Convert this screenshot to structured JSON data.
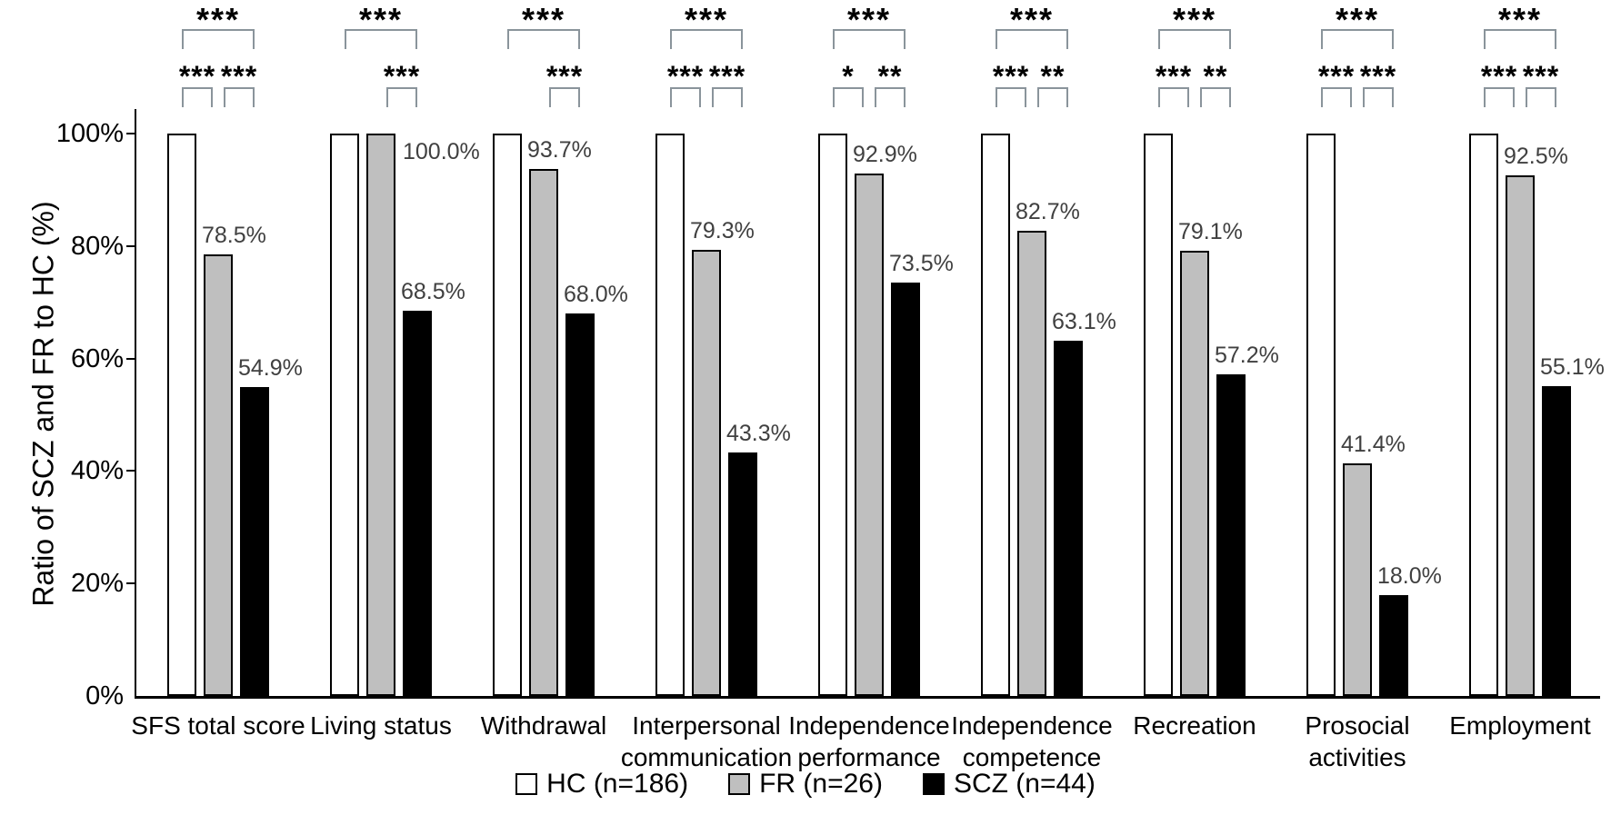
{
  "figure": {
    "ylabel": "Ratio of SCZ and FR to HC (%)"
  },
  "colors": {
    "bar_border": "#000000",
    "bracket": "#8a949b",
    "value_label": "#404040",
    "axis": "#000000"
  },
  "chart_data": {
    "type": "bar",
    "title": "",
    "xlabel": "",
    "ylabel": "Ratio of SCZ and FR to HC (%)",
    "ylim": [
      0,
      100
    ],
    "y_ticks": [
      "0%",
      "20%",
      "40%",
      "60%",
      "80%",
      "100%"
    ],
    "grid": false,
    "legend_position": "bottom-center",
    "categories": [
      "SFS total score",
      "Living status",
      "Withdrawal",
      "Interpersonal communication",
      "Independence performance",
      "Independence competence",
      "Recreation",
      "Prosocial activities",
      "Employment"
    ],
    "category_lines": [
      [
        "SFS total score"
      ],
      [
        "Living status"
      ],
      [
        "Withdrawal"
      ],
      [
        "Interpersonal",
        "communication"
      ],
      [
        "Independence",
        "performance"
      ],
      [
        "Independence",
        "competence"
      ],
      [
        "Recreation"
      ],
      [
        "Prosocial",
        "activities"
      ],
      [
        "Employment"
      ]
    ],
    "series": [
      {
        "name": "HC (n=186)",
        "color": "#ffffff",
        "values": [
          100,
          100,
          100,
          100,
          100,
          100,
          100,
          100,
          100
        ],
        "data_labels": [
          null,
          null,
          null,
          null,
          null,
          null,
          null,
          null,
          null
        ]
      },
      {
        "name": "FR (n=26)",
        "color": "#bfbfbf",
        "values": [
          78.5,
          100.0,
          93.7,
          79.3,
          92.9,
          82.7,
          79.1,
          41.4,
          92.5
        ],
        "data_labels": [
          "78.5%",
          "100.0%",
          "93.7%",
          "79.3%",
          "92.9%",
          "82.7%",
          "79.1%",
          "41.4%",
          "92.5%"
        ]
      },
      {
        "name": "SCZ (n=44)",
        "color": "#000000",
        "values": [
          54.9,
          68.5,
          68.0,
          43.3,
          73.5,
          63.1,
          57.2,
          18.0,
          55.1
        ],
        "data_labels": [
          "54.9%",
          "68.5%",
          "68.0%",
          "43.3%",
          "73.5%",
          "63.1%",
          "57.2%",
          "18.0%",
          "55.1%"
        ]
      }
    ],
    "significance": [
      {
        "category": "SFS total score",
        "hc_scz": "***",
        "hc_fr": "***",
        "fr_scz": "***"
      },
      {
        "category": "Living status",
        "hc_scz": "***",
        "hc_fr": null,
        "fr_scz": "***"
      },
      {
        "category": "Withdrawal",
        "hc_scz": "***",
        "hc_fr": null,
        "fr_scz": "***"
      },
      {
        "category": "Interpersonal communication",
        "hc_scz": "***",
        "hc_fr": "***",
        "fr_scz": "***"
      },
      {
        "category": "Independence performance",
        "hc_scz": "***",
        "hc_fr": "*",
        "fr_scz": "**"
      },
      {
        "category": "Independence competence",
        "hc_scz": "***",
        "hc_fr": "***",
        "fr_scz": "**"
      },
      {
        "category": "Recreation",
        "hc_scz": "***",
        "hc_fr": "***",
        "fr_scz": "**"
      },
      {
        "category": "Prosocial activities",
        "hc_scz": "***",
        "hc_fr": "***",
        "fr_scz": "***"
      },
      {
        "category": "Employment",
        "hc_scz": "***",
        "hc_fr": "***",
        "fr_scz": "***"
      }
    ]
  }
}
